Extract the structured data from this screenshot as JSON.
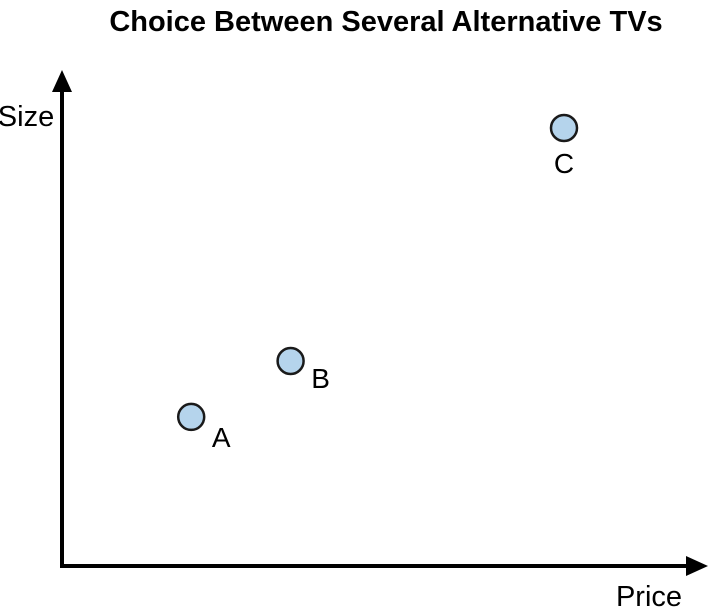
{
  "chart_data": {
    "type": "scatter",
    "title": "Choice Between Several Alternative TVs",
    "xlabel": "Price",
    "ylabel": "Size",
    "xlim": [
      0,
      100
    ],
    "ylim": [
      0,
      100
    ],
    "grid": false,
    "legend": "none",
    "points": [
      {
        "label": "A",
        "x": 26,
        "y": 32
      },
      {
        "label": "B",
        "x": 46,
        "y": 44
      },
      {
        "label": "C",
        "x": 101,
        "y": 94
      }
    ],
    "point_color": "#b5d4ec",
    "point_stroke": "#1a1a1a",
    "axis_color": "#000000"
  }
}
